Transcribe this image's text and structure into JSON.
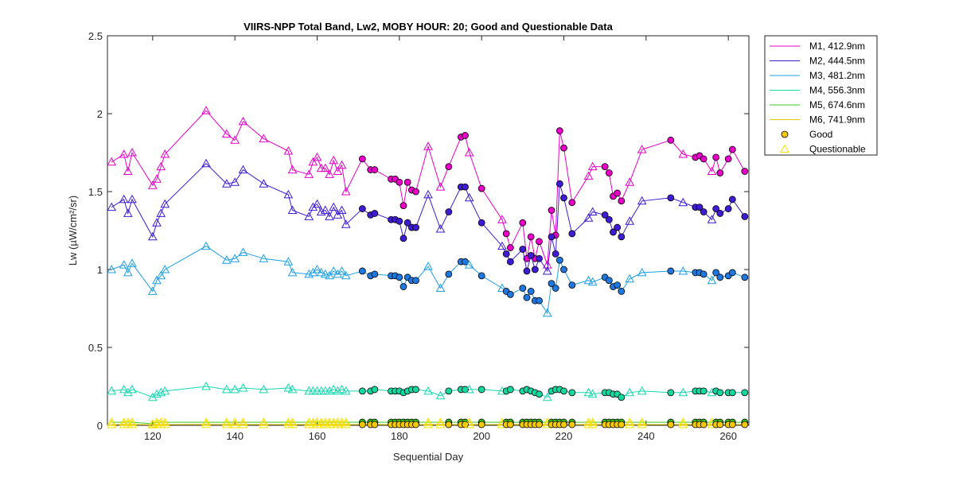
{
  "chart_data": {
    "type": "line",
    "title": "VIIRS-NPP Total Band,  Lw2, MOBY HOUR: 20;  Good and Questionable Data",
    "xlabel": "Sequential Day",
    "ylabel": "Lw (µW/cm²/sr)",
    "xlim": [
      109,
      265
    ],
    "ylim": [
      0,
      2.5
    ],
    "xticks": [
      "120",
      "140",
      "160",
      "180",
      "200",
      "220",
      "240",
      "260"
    ],
    "yticks": [
      "0",
      "0.5",
      "1",
      "1.5",
      "2",
      "2.5"
    ],
    "grid": false,
    "legend_position": "top-right outside",
    "x": [
      110,
      113,
      114,
      115,
      120,
      121,
      122,
      123,
      133,
      138,
      140,
      142,
      147,
      153,
      154,
      158,
      159,
      160,
      161,
      162,
      163,
      164,
      165,
      166,
      167,
      171,
      173,
      174,
      178,
      179,
      180,
      181,
      182,
      183,
      184,
      187,
      190,
      192,
      195,
      196,
      197,
      200,
      205,
      206,
      207,
      210,
      211,
      212,
      213,
      214,
      216,
      217,
      218,
      219,
      220,
      222,
      226,
      227,
      230,
      231,
      232,
      233,
      234,
      236,
      239,
      246,
      249,
      252,
      253,
      254,
      256,
      257,
      258,
      260,
      261,
      264
    ],
    "quality": [
      "Q",
      "Q",
      "Q",
      "Q",
      "Q",
      "Q",
      "Q",
      "Q",
      "Q",
      "Q",
      "Q",
      "Q",
      "Q",
      "Q",
      "Q",
      "Q",
      "Q",
      "Q",
      "Q",
      "Q",
      "Q",
      "Q",
      "Q",
      "Q",
      "Q",
      "G",
      "G",
      "G",
      "G",
      "G",
      "G",
      "G",
      "G",
      "G",
      "G",
      "Q",
      "Q",
      "G",
      "G",
      "G",
      "Q",
      "G",
      "Q",
      "G",
      "G",
      "G",
      "G",
      "G",
      "G",
      "G",
      "Q",
      "G",
      "G",
      "G",
      "G",
      "G",
      "Q",
      "Q",
      "G",
      "G",
      "G",
      "G",
      "G",
      "Q",
      "Q",
      "G",
      "Q",
      "G",
      "G",
      "G",
      "Q",
      "G",
      "G",
      "G",
      "G",
      "G"
    ],
    "series": [
      {
        "name": "M1, 412.9nm",
        "color": "#E800C8",
        "fill": "#E800C8",
        "values": [
          1.69,
          1.74,
          1.63,
          1.75,
          1.54,
          1.58,
          1.66,
          1.74,
          2.02,
          1.87,
          1.83,
          1.95,
          1.84,
          1.76,
          1.64,
          1.61,
          1.69,
          1.72,
          1.65,
          1.65,
          1.61,
          1.7,
          1.63,
          1.67,
          1.5,
          1.71,
          1.64,
          1.64,
          1.58,
          1.58,
          1.56,
          1.41,
          1.56,
          1.51,
          1.5,
          1.79,
          1.53,
          1.66,
          1.85,
          1.86,
          1.75,
          1.52,
          1.32,
          1.23,
          1.14,
          1.3,
          1.07,
          1.21,
          1.07,
          1.18,
          1.03,
          1.38,
          1.22,
          1.89,
          1.78,
          1.43,
          1.6,
          1.66,
          1.66,
          1.62,
          1.47,
          1.49,
          1.44,
          1.56,
          1.77,
          1.83,
          1.74,
          1.72,
          1.73,
          1.71,
          1.63,
          1.72,
          1.62,
          1.71,
          1.77,
          1.63
        ]
      },
      {
        "name": "M2, 444.5nm",
        "color": "#3F1BD6",
        "fill": "#3F1BD6",
        "values": [
          1.4,
          1.45,
          1.36,
          1.45,
          1.21,
          1.3,
          1.36,
          1.42,
          1.68,
          1.55,
          1.56,
          1.64,
          1.55,
          1.48,
          1.38,
          1.34,
          1.4,
          1.42,
          1.37,
          1.38,
          1.34,
          1.4,
          1.35,
          1.38,
          1.29,
          1.39,
          1.35,
          1.36,
          1.32,
          1.32,
          1.31,
          1.2,
          1.3,
          1.27,
          1.27,
          1.48,
          1.26,
          1.37,
          1.53,
          1.53,
          1.46,
          1.3,
          1.15,
          1.1,
          1.05,
          1.13,
          0.99,
          1.09,
          1.0,
          1.07,
          0.99,
          1.21,
          1.1,
          1.55,
          1.46,
          1.23,
          1.33,
          1.37,
          1.35,
          1.32,
          1.24,
          1.27,
          1.21,
          1.31,
          1.44,
          1.46,
          1.43,
          1.4,
          1.4,
          1.37,
          1.32,
          1.39,
          1.36,
          1.39,
          1.45,
          1.34
        ]
      },
      {
        "name": "M3, 481.2nm",
        "color": "#1EA0E6",
        "fill": "#1E78E0",
        "values": [
          1.0,
          1.03,
          0.98,
          1.04,
          0.86,
          0.93,
          0.96,
          1.0,
          1.15,
          1.06,
          1.07,
          1.11,
          1.07,
          1.05,
          0.98,
          0.97,
          0.98,
          1.0,
          0.98,
          0.97,
          0.96,
          0.99,
          0.97,
          0.99,
          0.96,
          0.99,
          0.96,
          0.97,
          0.96,
          0.96,
          0.95,
          0.89,
          0.95,
          0.93,
          0.93,
          1.02,
          0.88,
          0.97,
          1.05,
          1.05,
          1.03,
          0.96,
          0.88,
          0.86,
          0.84,
          0.88,
          0.82,
          0.86,
          0.8,
          0.8,
          0.72,
          0.91,
          0.88,
          1.06,
          1.0,
          0.9,
          0.93,
          0.92,
          0.95,
          0.93,
          0.89,
          0.9,
          0.86,
          0.94,
          0.98,
          0.99,
          0.99,
          0.98,
          0.98,
          0.97,
          0.93,
          0.98,
          0.95,
          0.96,
          0.98,
          0.95
        ]
      },
      {
        "name": "M4, 556.3nm",
        "color": "#14D8B0",
        "fill": "#14D8A0",
        "values": [
          0.22,
          0.23,
          0.21,
          0.23,
          0.18,
          0.2,
          0.21,
          0.22,
          0.25,
          0.23,
          0.23,
          0.24,
          0.23,
          0.24,
          0.23,
          0.22,
          0.22,
          0.22,
          0.22,
          0.22,
          0.22,
          0.23,
          0.22,
          0.23,
          0.22,
          0.22,
          0.22,
          0.23,
          0.22,
          0.22,
          0.22,
          0.21,
          0.22,
          0.23,
          0.23,
          0.22,
          0.19,
          0.22,
          0.23,
          0.23,
          0.23,
          0.23,
          0.22,
          0.22,
          0.23,
          0.22,
          0.23,
          0.22,
          0.21,
          0.2,
          0.18,
          0.22,
          0.23,
          0.23,
          0.22,
          0.21,
          0.21,
          0.2,
          0.21,
          0.21,
          0.2,
          0.2,
          0.18,
          0.21,
          0.22,
          0.21,
          0.21,
          0.22,
          0.22,
          0.22,
          0.21,
          0.22,
          0.21,
          0.21,
          0.21,
          0.21
        ]
      },
      {
        "name": "M5, 674.6nm",
        "color": "#39C820",
        "fill": "#36C81E",
        "values": [
          0.02,
          0.02,
          0.02,
          0.02,
          0.01,
          0.02,
          0.02,
          0.02,
          0.02,
          0.02,
          0.02,
          0.02,
          0.02,
          0.02,
          0.02,
          0.02,
          0.02,
          0.02,
          0.02,
          0.02,
          0.02,
          0.02,
          0.02,
          0.02,
          0.02,
          0.02,
          0.02,
          0.02,
          0.02,
          0.02,
          0.02,
          0.02,
          0.02,
          0.02,
          0.02,
          0.02,
          0.02,
          0.02,
          0.02,
          0.02,
          0.02,
          0.02,
          0.02,
          0.02,
          0.02,
          0.02,
          0.02,
          0.02,
          0.02,
          0.02,
          0.02,
          0.02,
          0.02,
          0.02,
          0.02,
          0.02,
          0.02,
          0.02,
          0.02,
          0.02,
          0.02,
          0.02,
          0.02,
          0.02,
          0.02,
          0.02,
          0.02,
          0.02,
          0.02,
          0.02,
          0.02,
          0.02,
          0.02,
          0.02,
          0.02,
          0.02
        ]
      },
      {
        "name": "M6, 741.9nm",
        "color": "#E8C800",
        "fill": "#F5C800",
        "values": [
          0.005,
          0.005,
          0.005,
          0.005,
          0.004,
          0.005,
          0.005,
          0.005,
          0.006,
          0.005,
          0.005,
          0.005,
          0.005,
          0.005,
          0.005,
          0.005,
          0.005,
          0.005,
          0.005,
          0.005,
          0.005,
          0.005,
          0.005,
          0.005,
          0.005,
          0.005,
          0.005,
          0.005,
          0.005,
          0.005,
          0.005,
          0.005,
          0.005,
          0.005,
          0.005,
          0.005,
          0.005,
          0.005,
          0.005,
          0.005,
          0.005,
          0.005,
          0.005,
          0.005,
          0.005,
          0.005,
          0.005,
          0.005,
          0.005,
          0.005,
          0.005,
          0.005,
          0.005,
          0.005,
          0.005,
          0.005,
          0.005,
          0.005,
          0.005,
          0.005,
          0.005,
          0.005,
          0.005,
          0.005,
          0.005,
          0.005,
          0.005,
          0.005,
          0.005,
          0.005,
          0.005,
          0.005,
          0.005,
          0.005,
          0.005,
          0.005
        ]
      }
    ],
    "markers": [
      {
        "label": "Good",
        "shape": "circle",
        "fill": "#F5C800"
      },
      {
        "label": "Questionable",
        "shape": "triangle",
        "fill": "none",
        "stroke": "#F5E000"
      }
    ]
  }
}
